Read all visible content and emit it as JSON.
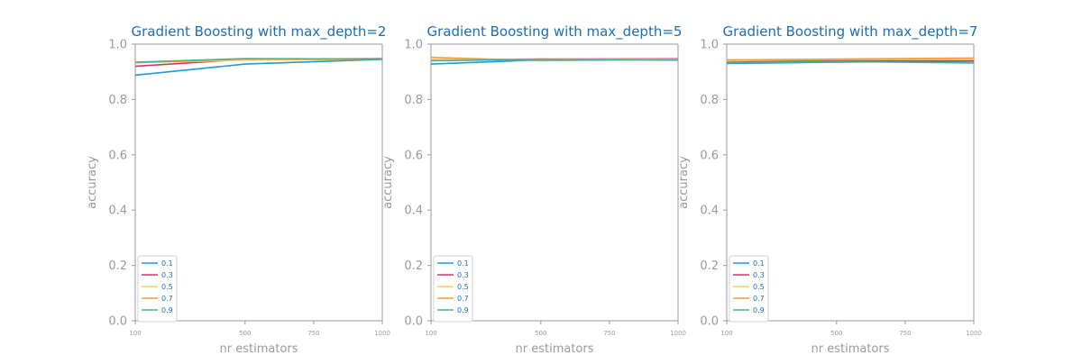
{
  "chart_data": [
    {
      "type": "line",
      "title": "Gradient Boosting with max_depth=2",
      "xlabel": "nr estimators",
      "ylabel": "accuracy",
      "x": [
        100,
        500,
        1000
      ],
      "xticks": [
        "100",
        "500",
        "750",
        "1000"
      ],
      "yticks": [
        "0.0",
        "0.2",
        "0.4",
        "0.6",
        "0.8",
        "1.0"
      ],
      "xlim": [
        100,
        1000
      ],
      "ylim": [
        0.0,
        1.0
      ],
      "legend_position": "lower-left",
      "series": [
        {
          "name": "0.1",
          "color": "#1f9bd1",
          "values": [
            0.888,
            0.928,
            0.945
          ]
        },
        {
          "name": "0.3",
          "color": "#d6336c",
          "values": [
            0.92,
            0.945,
            0.948
          ]
        },
        {
          "name": "0.5",
          "color": "#f2cf6e",
          "values": [
            0.933,
            0.942,
            0.946
          ]
        },
        {
          "name": "0.7",
          "color": "#f39c35",
          "values": [
            0.933,
            0.947,
            0.946
          ]
        },
        {
          "name": "0.9",
          "color": "#4caf95",
          "values": [
            0.935,
            0.948,
            0.946
          ]
        }
      ]
    },
    {
      "type": "line",
      "title": "Gradient Boosting with max_depth=5",
      "xlabel": "nr estimators",
      "ylabel": "accuracy",
      "x": [
        100,
        500,
        1000
      ],
      "xticks": [
        "100",
        "500",
        "750",
        "1000"
      ],
      "yticks": [
        "0.0",
        "0.2",
        "0.4",
        "0.6",
        "0.8",
        "1.0"
      ],
      "xlim": [
        100,
        1000
      ],
      "ylim": [
        0.0,
        1.0
      ],
      "legend_position": "lower-left",
      "series": [
        {
          "name": "0.1",
          "color": "#1f9bd1",
          "values": [
            0.928,
            0.943,
            0.945
          ]
        },
        {
          "name": "0.3",
          "color": "#d6336c",
          "values": [
            0.943,
            0.946,
            0.947
          ]
        },
        {
          "name": "0.5",
          "color": "#f2cf6e",
          "values": [
            0.945,
            0.945,
            0.945
          ]
        },
        {
          "name": "0.7",
          "color": "#f39c35",
          "values": [
            0.952,
            0.94,
            0.945
          ]
        },
        {
          "name": "0.9",
          "color": "#4caf95",
          "values": [
            0.94,
            0.945,
            0.942
          ]
        }
      ]
    },
    {
      "type": "line",
      "title": "Gradient Boosting with max_depth=7",
      "xlabel": "nr estimators",
      "ylabel": "accuracy",
      "x": [
        100,
        500,
        1000
      ],
      "xticks": [
        "100",
        "500",
        "750",
        "1000"
      ],
      "yticks": [
        "0.0",
        "0.2",
        "0.4",
        "0.6",
        "0.8",
        "1.0"
      ],
      "xlim": [
        100,
        1000
      ],
      "ylim": [
        0.0,
        1.0
      ],
      "legend_position": "lower-left",
      "series": [
        {
          "name": "0.1",
          "color": "#1f9bd1",
          "values": [
            0.93,
            0.935,
            0.938
          ]
        },
        {
          "name": "0.3",
          "color": "#d6336c",
          "values": [
            0.938,
            0.94,
            0.94
          ]
        },
        {
          "name": "0.5",
          "color": "#f2cf6e",
          "values": [
            0.94,
            0.945,
            0.945
          ]
        },
        {
          "name": "0.7",
          "color": "#f39c35",
          "values": [
            0.943,
            0.946,
            0.95
          ]
        },
        {
          "name": "0.9",
          "color": "#4caf95",
          "values": [
            0.933,
            0.937,
            0.932
          ]
        }
      ]
    }
  ]
}
